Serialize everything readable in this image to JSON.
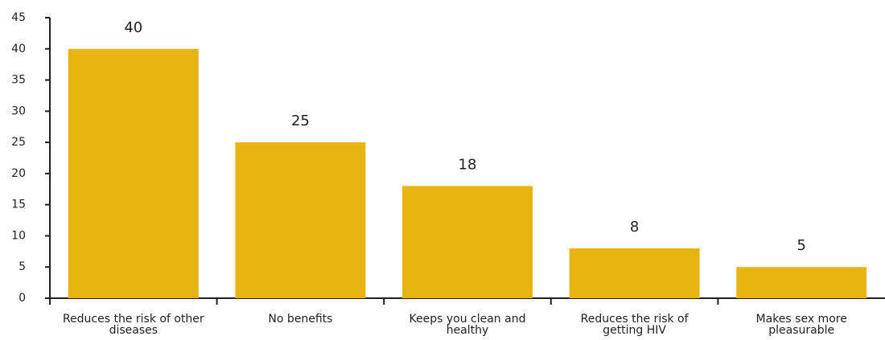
{
  "chart_data": {
    "type": "bar",
    "categories": [
      "Reduces the risk of other diseases",
      "No benefits",
      "Keeps you clean and healthy",
      "Reduces the risk of getting HIV",
      "Makes sex more pleasurable"
    ],
    "values": [
      40,
      25,
      18,
      8,
      5
    ],
    "color": "#e8b412",
    "ylim": [
      0,
      45
    ],
    "yticks": [
      0,
      5,
      10,
      15,
      20,
      25,
      30,
      35,
      40,
      45
    ],
    "grid": false
  }
}
